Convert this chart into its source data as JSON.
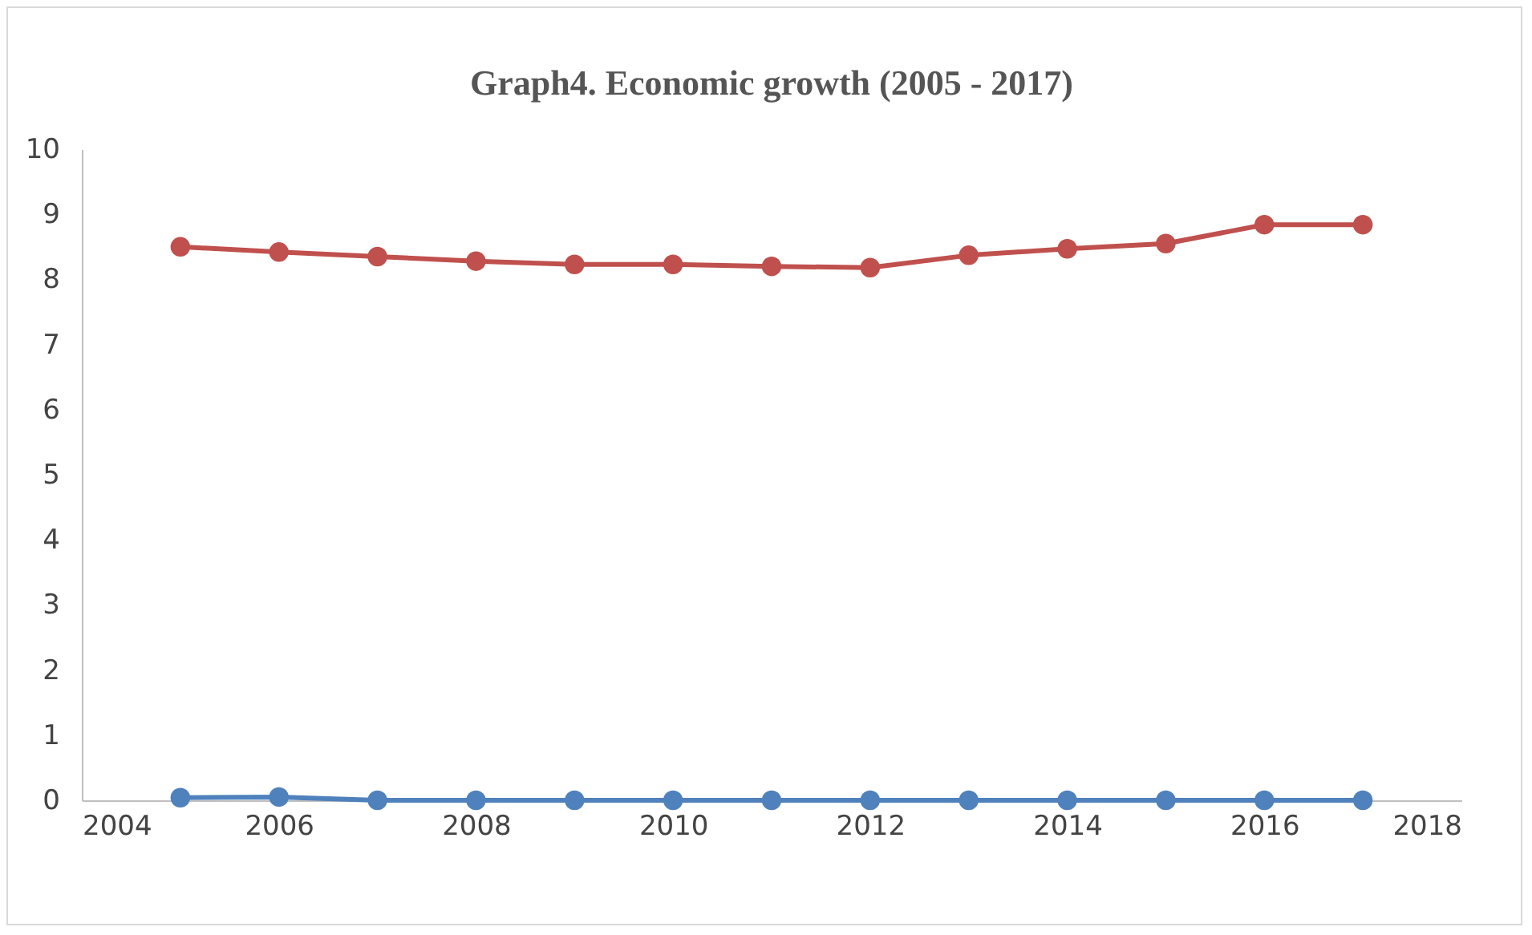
{
  "chart_data": {
    "type": "line",
    "title": "Graph4. Economic growth (2005 - 2017)",
    "x": [
      2005,
      2006,
      2007,
      2008,
      2009,
      2010,
      2011,
      2012,
      2013,
      2014,
      2015,
      2016,
      2017
    ],
    "series": [
      {
        "color": "#c0504d",
        "values": [
          8.5,
          8.42,
          8.35,
          8.28,
          8.23,
          8.23,
          8.2,
          8.18,
          8.37,
          8.47,
          8.55,
          8.84,
          8.84
        ]
      },
      {
        "color": "#4f81bd",
        "values": [
          0.04,
          0.05,
          0,
          0,
          0,
          0,
          0,
          0,
          0,
          0,
          0,
          0,
          0
        ]
      }
    ],
    "xlim": [
      2004,
      2018
    ],
    "xticks": [
      2004,
      2006,
      2008,
      2010,
      2012,
      2014,
      2016,
      2018
    ],
    "ylim": [
      0,
      10
    ],
    "yticks": [
      0,
      1,
      2,
      3,
      4,
      5,
      6,
      7,
      8,
      9,
      10
    ],
    "grid": false,
    "legend": false,
    "marker": "circle",
    "line_style": "solid"
  }
}
